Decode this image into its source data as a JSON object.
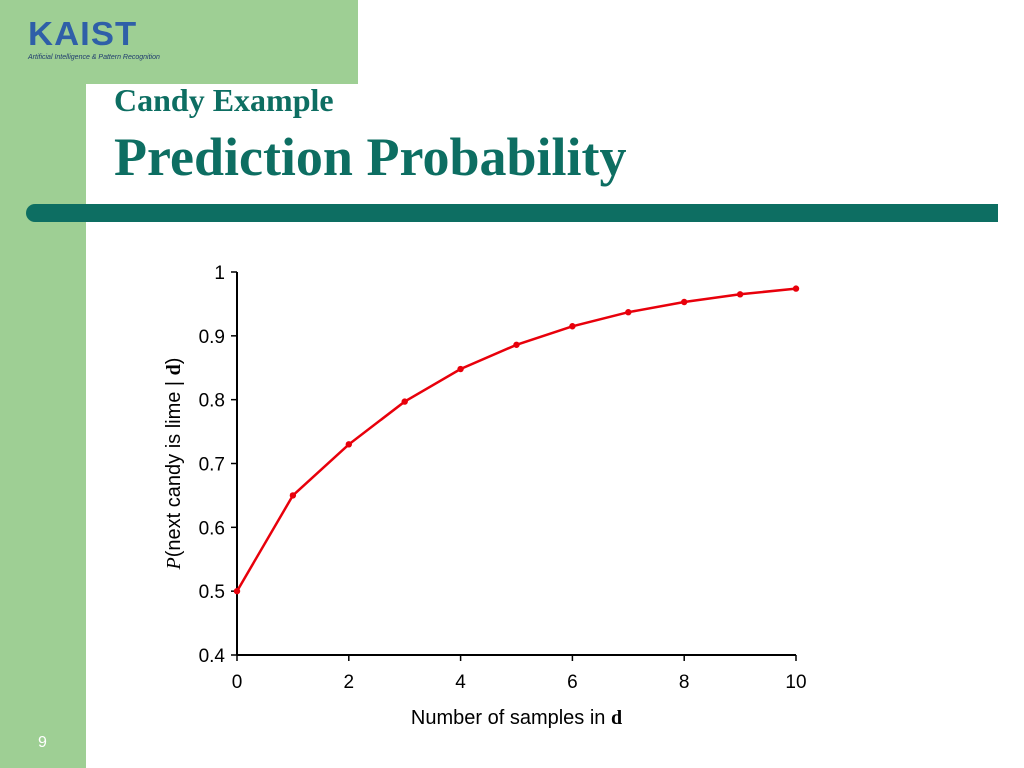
{
  "slide": {
    "logo_text": "KAIST",
    "logo_subtext": "Artificial Intelligence & Pattern Recognition",
    "subtitle": "Candy Example",
    "title": "Prediction Probability",
    "page_number": "9",
    "colors": {
      "accent": "#0d6e62",
      "band": "#9ecf94",
      "line": "#e8000b"
    }
  },
  "chart_data": {
    "type": "line",
    "x": [
      0,
      1,
      2,
      3,
      4,
      5,
      6,
      7,
      8,
      9,
      10
    ],
    "series": [
      {
        "values": [
          0.5,
          0.65,
          0.73,
          0.797,
          0.848,
          0.886,
          0.915,
          0.937,
          0.953,
          0.965,
          0.974
        ]
      }
    ],
    "xlabel": {
      "text": "Number of samples in ",
      "emphasis": "d"
    },
    "ylabel": {
      "prefix": "P",
      "text": "(next candy is lime | ",
      "emphasis": "d",
      "suffix": ")"
    },
    "xlim": [
      0,
      10
    ],
    "ylim": [
      0.4,
      1
    ],
    "x_ticks": [
      0,
      2,
      4,
      6,
      8,
      10
    ],
    "y_ticks": [
      0.4,
      0.5,
      0.6,
      0.7,
      0.8,
      0.9,
      1
    ],
    "y_tick_labels": [
      "0.4",
      "0.5",
      "0.6",
      "0.7",
      "0.8",
      "0.9",
      "1"
    ],
    "grid": false,
    "legend": "none"
  }
}
